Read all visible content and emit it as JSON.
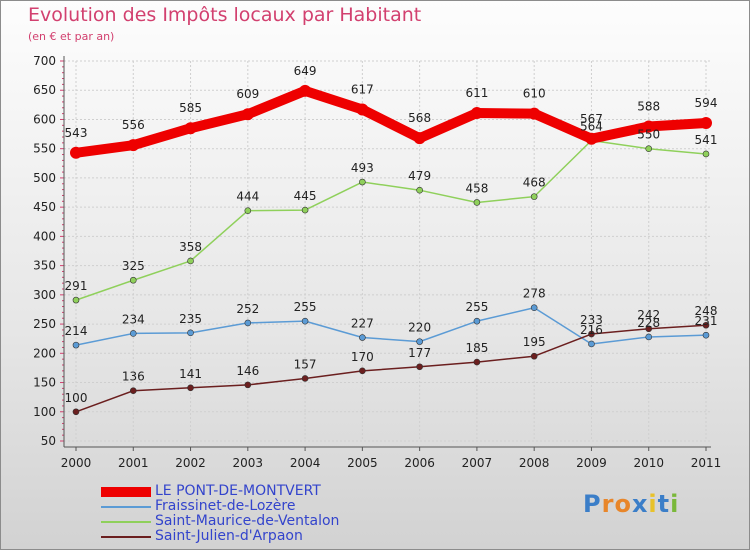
{
  "header": {
    "title": "Evolution des Impôts locaux par Habitant",
    "subtitle": "(en € et par an)"
  },
  "logo": {
    "chars": [
      "P",
      "r",
      "o",
      "x",
      "i",
      "t",
      "i"
    ],
    "colors": [
      "#3b7ec8",
      "#e8862a",
      "#e8862a",
      "#3b7ec8",
      "#e8c22a",
      "#3b7ec8",
      "#7ab83a"
    ]
  },
  "chart_data": {
    "type": "line",
    "title": "Evolution des Impôts locaux par Habitant",
    "subtitle": "(en € et par an)",
    "xlabel": "",
    "ylabel": "",
    "ylim": [
      50,
      700
    ],
    "yticks": [
      50,
      100,
      150,
      200,
      250,
      300,
      350,
      400,
      450,
      500,
      550,
      600,
      650,
      700
    ],
    "grid": true,
    "legend_position": "bottom-left",
    "x": [
      "2000",
      "2001",
      "2002",
      "2003",
      "2004",
      "2005",
      "2006",
      "2007",
      "2008",
      "2009",
      "2010",
      "2011"
    ],
    "series": [
      {
        "name": "LE PONT-DE-MONTVERT",
        "color": "#ee0000",
        "values": [
          543,
          556,
          585,
          609,
          649,
          617,
          568,
          611,
          610,
          567,
          588,
          594
        ],
        "labels": [
          "543",
          "556",
          "585",
          "609",
          "649",
          "617",
          "568",
          "611",
          "610",
          "567",
          "588",
          "594"
        ]
      },
      {
        "name": "Fraissinet-de-Lozère",
        "color": "#5b9bd5",
        "values": [
          214,
          234,
          235,
          252,
          255,
          227,
          220,
          255,
          278,
          216,
          228,
          231
        ],
        "labels": [
          "214",
          "234",
          "235",
          "252",
          "255",
          "227",
          "220",
          "255",
          "278",
          "216",
          "228",
          "231"
        ]
      },
      {
        "name": "Saint-Maurice-de-Ventalon",
        "color": "#8fd05b",
        "values": [
          291,
          325,
          358,
          444,
          445,
          493,
          479,
          458,
          468,
          564,
          550,
          541
        ],
        "labels": [
          "291",
          "325",
          "358",
          "444",
          "445",
          "493",
          "479",
          "458",
          "468",
          "564",
          "550",
          "541"
        ]
      },
      {
        "name": "Saint-Julien-d'Arpaon",
        "color": "#6b1f1f",
        "values": [
          100,
          136,
          141,
          146,
          157,
          170,
          177,
          185,
          195,
          233,
          242,
          248
        ],
        "labels": [
          "100",
          "136",
          "141",
          "146",
          "157",
          "170",
          "177",
          "185",
          "195",
          "233",
          "242",
          "248"
        ]
      }
    ]
  }
}
